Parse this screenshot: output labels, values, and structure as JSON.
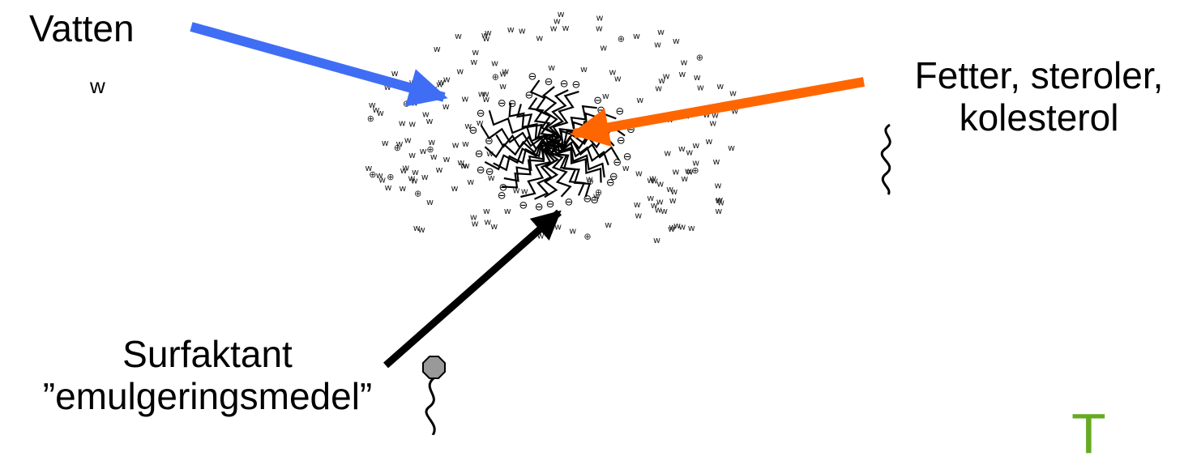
{
  "labels": {
    "water": "Vatten",
    "water_symbol": "w",
    "fat_line1": "Fetter, steroler,",
    "fat_line2": "kolesterol",
    "surfactant_line1": "Surfaktant",
    "surfactant_line2": "”emulgeringsmedel”",
    "corner_mark": "T"
  },
  "colors": {
    "water_arrow": "#3f6ef5",
    "fat_arrow": "#ff6600",
    "surfactant_arrow": "#000000",
    "surfactant_head": "#999999",
    "corner_mark": "#66aa22"
  },
  "micelle": {
    "water_marker": "w",
    "head_marker": "⊖",
    "cation_marker": "⊕"
  }
}
